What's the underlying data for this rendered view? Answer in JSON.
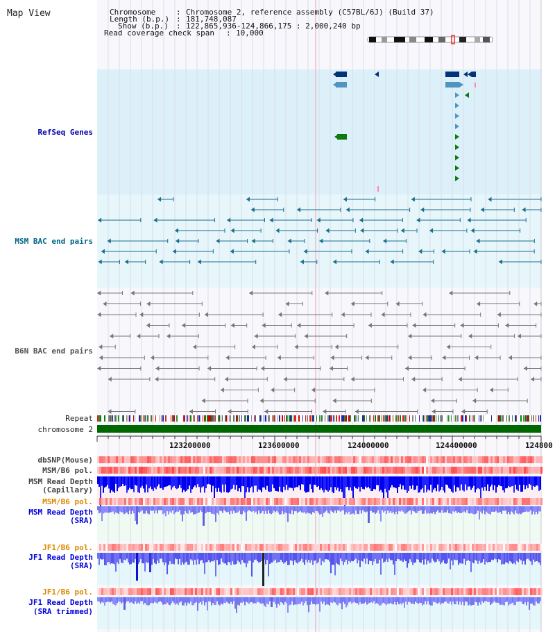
{
  "view_title": "Map View",
  "info": {
    "chromosome_key": "Chromosome",
    "chromosome_value": "Chromosome 2, reference assembly (C57BL/6J) (Build 37)",
    "length_key": "Length (b.p.)",
    "length_value": "181,748,087",
    "show_key": "Show (b.p.)",
    "show_value": "122,865,936-124,866,175 : 2,000,240 bp",
    "coverage_key": "Read coverage check span",
    "coverage_value": "10,000"
  },
  "tracks": {
    "refseq": "RefSeq Genes",
    "msm_bac": "MSM BAC end pairs",
    "b6n_bac": "B6N BAC end pairs",
    "repeat": "Repeat",
    "chromosome": "chromosome 2",
    "dbsnp": "dbSNP(Mouse)",
    "msm_b6_pol": "MSM/B6 pol.",
    "msm_depth_cap_1": "MSM Read Depth",
    "msm_depth_cap_2": "(Capillary)",
    "msm_b6_pol_sra": "MSM/B6 pol.",
    "msm_depth_sra_1": "MSM Read Depth",
    "msm_depth_sra_2": "(SRA)",
    "jf1_b6_pol": "JF1/B6 pol.",
    "jf1_depth_sra_1": "JF1 Read Depth",
    "jf1_depth_sra_2": "(SRA)",
    "jf1_b6_pol_trim": "JF1/B6 pol.",
    "jf1_depth_trim_1": "JF1 Read Depth",
    "jf1_depth_trim_2": "(SRA trimmed)"
  },
  "ruler_ticks": [
    "123200000",
    "123600000",
    "124000000",
    "124400000",
    "124800"
  ],
  "colors": {
    "refseq_label": "#0000aa",
    "msm_label": "#006688",
    "b6n_label": "#555555",
    "pol_orange": "#dd8800",
    "depth_blue": "#0000dd"
  }
}
